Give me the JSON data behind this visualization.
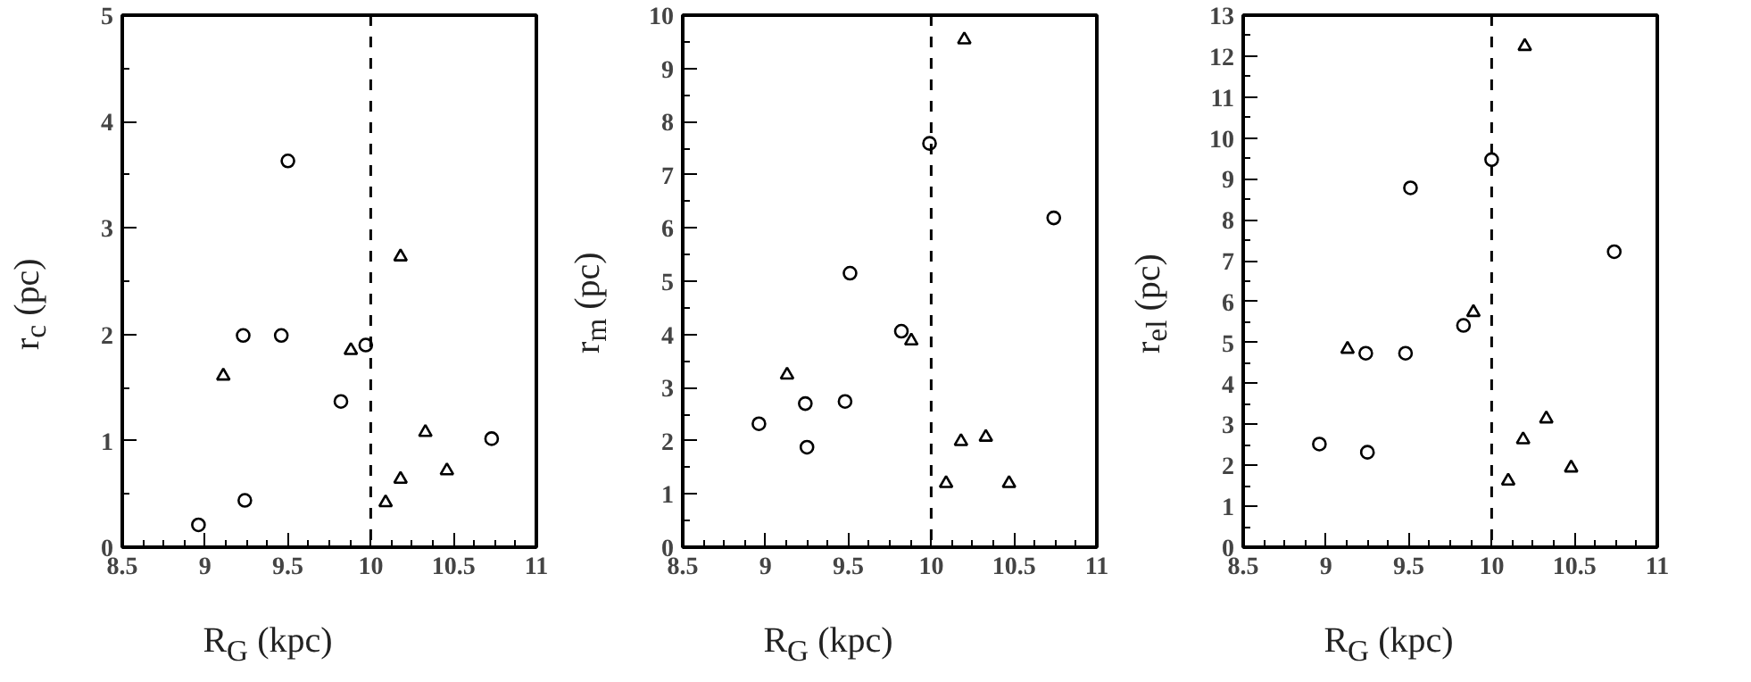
{
  "chart_data": [
    {
      "type": "scatter",
      "xlabel": "R$_{G}$ (kpc)",
      "ylabel": "r$_{c}$ (pc)",
      "xlim": [
        8.5,
        11
      ],
      "ylim": [
        0,
        5
      ],
      "xticks": [
        8.5,
        9,
        9.5,
        10,
        10.5,
        11
      ],
      "yticks": [
        0,
        1,
        2,
        3,
        4,
        5
      ],
      "grid": false,
      "ref_lines": [
        {
          "axis": "x",
          "value": 10,
          "line_style": "dashed",
          "color": "#000000"
        }
      ],
      "series": [
        {
          "marker": "circle",
          "color": "#000000",
          "x": [
            8.96,
            9.24,
            9.23,
            9.46,
            9.5,
            9.82,
            9.97,
            10.73
          ],
          "values": [
            0.21,
            0.44,
            1.99,
            1.99,
            3.63,
            1.37,
            1.9,
            1.02
          ]
        },
        {
          "marker": "triangle",
          "color": "#000000",
          "x": [
            9.11,
            9.88,
            10.18,
            10.09,
            10.18,
            10.33,
            10.46
          ],
          "values": [
            1.61,
            1.85,
            2.73,
            0.42,
            0.64,
            1.08,
            0.72
          ]
        }
      ]
    },
    {
      "type": "scatter",
      "xlabel": "R$_{G}$ (kpc)",
      "ylabel": "r$_{m}$ (pc)",
      "xlim": [
        8.5,
        11
      ],
      "ylim": [
        0,
        10
      ],
      "xticks": [
        8.5,
        9,
        9.5,
        10,
        10.5,
        11
      ],
      "yticks": [
        0,
        1,
        2,
        3,
        4,
        5,
        6,
        7,
        8,
        9,
        10
      ],
      "grid": false,
      "ref_lines": [
        {
          "axis": "x",
          "value": 10,
          "line_style": "dashed",
          "color": "#000000"
        }
      ],
      "series": [
        {
          "marker": "circle",
          "color": "#000000",
          "x": [
            8.96,
            9.24,
            9.25,
            9.48,
            9.51,
            9.82,
            9.99,
            10.74
          ],
          "values": [
            2.32,
            2.7,
            1.88,
            2.74,
            5.15,
            4.06,
            7.59,
            6.19
          ]
        },
        {
          "marker": "triangle",
          "color": "#000000",
          "x": [
            9.13,
            9.88,
            10.2,
            10.09,
            10.18,
            10.33,
            10.47
          ],
          "values": [
            3.24,
            3.88,
            9.54,
            1.2,
            1.99,
            2.07,
            1.2
          ]
        }
      ]
    },
    {
      "type": "scatter",
      "xlabel": "R$_{G}$ (kpc)",
      "ylabel": "r$_{el}$ (pc)",
      "xlim": [
        8.5,
        11
      ],
      "ylim": [
        0,
        13
      ],
      "xticks": [
        8.5,
        9,
        9.5,
        10,
        10.5,
        11
      ],
      "yticks": [
        0,
        1,
        2,
        3,
        4,
        5,
        6,
        7,
        8,
        9,
        10,
        11,
        12,
        13
      ],
      "grid": false,
      "ref_lines": [
        {
          "axis": "x",
          "value": 10,
          "line_style": "dashed",
          "color": "#000000"
        }
      ],
      "series": [
        {
          "marker": "circle",
          "color": "#000000",
          "x": [
            8.96,
            9.25,
            9.24,
            9.48,
            9.51,
            9.83,
            10.0,
            10.74
          ],
          "values": [
            2.52,
            2.32,
            4.74,
            4.74,
            8.78,
            5.42,
            9.47,
            7.22
          ]
        },
        {
          "marker": "triangle",
          "color": "#000000",
          "x": [
            9.13,
            9.89,
            10.2,
            10.1,
            10.19,
            10.33,
            10.48
          ],
          "values": [
            4.84,
            5.74,
            12.24,
            1.62,
            2.63,
            3.14,
            1.94
          ]
        }
      ]
    }
  ]
}
